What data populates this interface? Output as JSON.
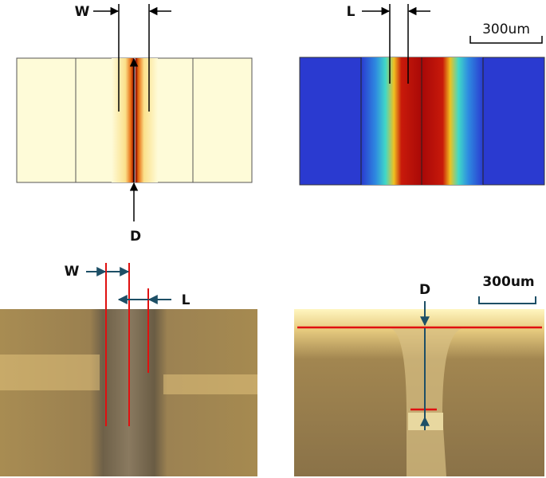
{
  "panels": [
    {
      "labels": [
        "W",
        "D"
      ]
    },
    {
      "labels": [
        "L"
      ],
      "scale_bar": "300um"
    },
    {
      "labels": [
        "W",
        "L"
      ]
    },
    {
      "labels": [
        "D"
      ],
      "scale_bar": "300um"
    }
  ]
}
